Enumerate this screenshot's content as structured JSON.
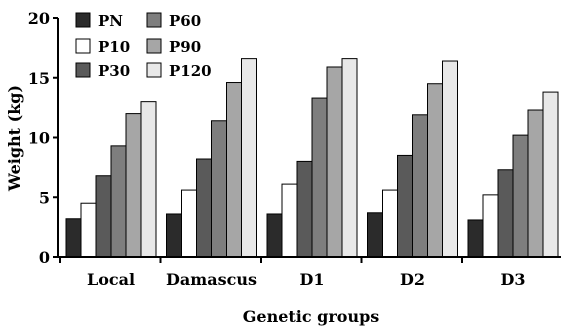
{
  "chart_data": {
    "type": "bar",
    "xlabel": "Genetic groups",
    "ylabel": "Weight (kg)",
    "ylim": [
      0,
      20
    ],
    "yticks": [
      0,
      5,
      10,
      15,
      20
    ],
    "categories": [
      "Local",
      "Damascus",
      "D1",
      "D2",
      "D3"
    ],
    "legend_position": "top-left",
    "grid": false,
    "series": [
      {
        "name": "PN",
        "color": "#2b2b2b",
        "values": [
          3.2,
          3.6,
          3.6,
          3.7,
          3.1
        ]
      },
      {
        "name": "P10",
        "color": "#ffffff",
        "values": [
          4.5,
          5.6,
          6.1,
          5.6,
          5.2
        ]
      },
      {
        "name": "P30",
        "color": "#5a5a5a",
        "values": [
          6.8,
          8.2,
          8.0,
          8.5,
          7.3
        ]
      },
      {
        "name": "P60",
        "color": "#7e7e7e",
        "values": [
          9.3,
          11.4,
          13.3,
          11.9,
          10.2
        ]
      },
      {
        "name": "P90",
        "color": "#a6a6a6",
        "values": [
          12.0,
          14.6,
          15.9,
          14.5,
          12.3
        ]
      },
      {
        "name": "P120",
        "color": "#e8e8e8",
        "values": [
          13.0,
          16.6,
          16.6,
          16.4,
          13.8
        ]
      }
    ]
  }
}
